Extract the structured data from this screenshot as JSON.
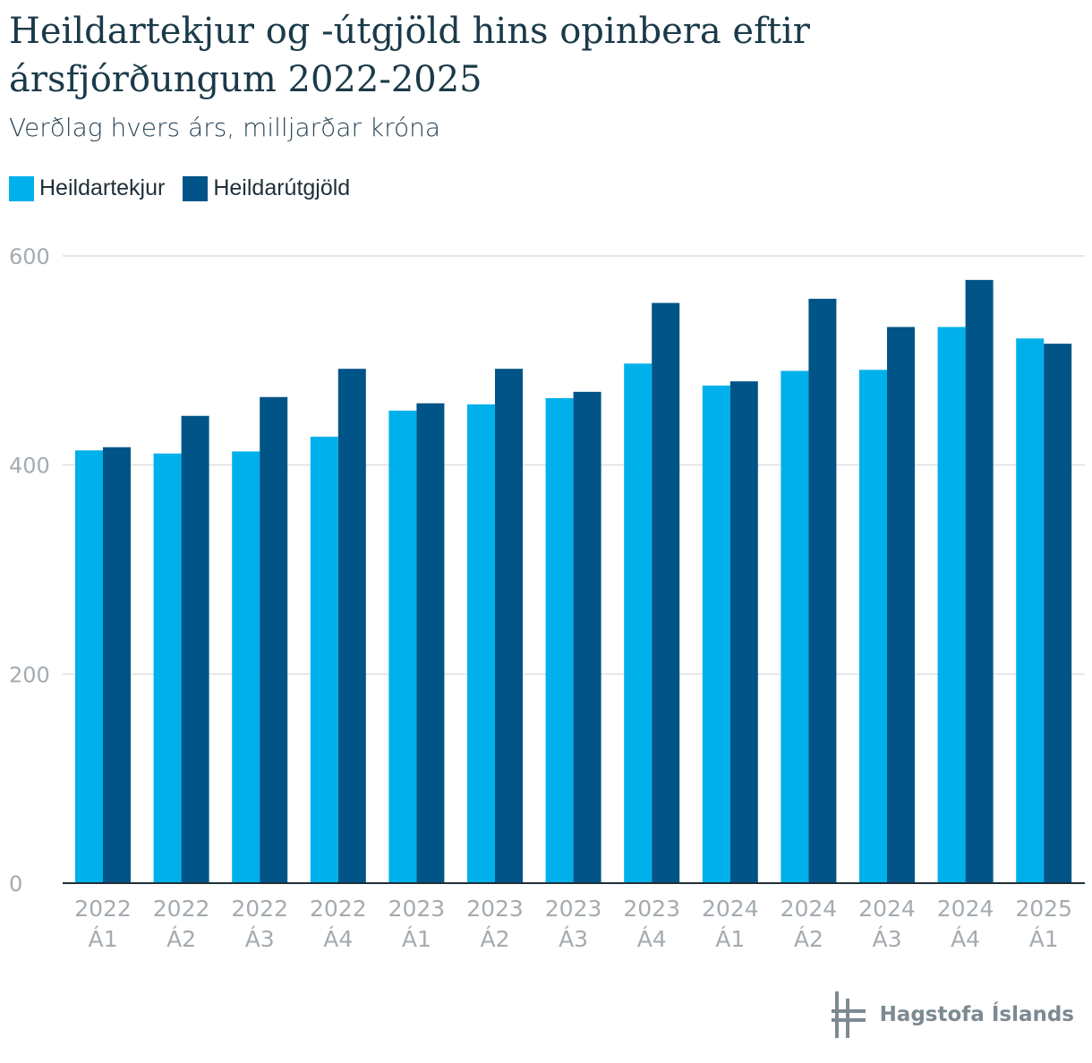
{
  "chart_data": {
    "type": "bar",
    "title": "Heildartekjur og -útgjöld hins opinbera eftir ársfjórðungum 2022-2025",
    "subtitle": "Verðlag hvers árs, milljarðar króna",
    "categories": [
      [
        "2022",
        "Á1"
      ],
      [
        "2022",
        "Á2"
      ],
      [
        "2022",
        "Á3"
      ],
      [
        "2022",
        "Á4"
      ],
      [
        "2023",
        "Á1"
      ],
      [
        "2023",
        "Á2"
      ],
      [
        "2023",
        "Á3"
      ],
      [
        "2023",
        "Á4"
      ],
      [
        "2024",
        "Á1"
      ],
      [
        "2024",
        "Á2"
      ],
      [
        "2024",
        "Á3"
      ],
      [
        "2024",
        "Á4"
      ],
      [
        "2025",
        "Á1"
      ]
    ],
    "series": [
      {
        "name": "Heildartekjur",
        "color": "#00b0ea",
        "values": [
          414,
          411,
          413,
          427,
          452,
          458,
          464,
          497,
          476,
          490,
          491,
          532,
          521
        ]
      },
      {
        "name": "Heildarútgjöld",
        "color": "#005487",
        "values": [
          417,
          447,
          465,
          492,
          459,
          492,
          470,
          555,
          480,
          559,
          532,
          577,
          516
        ]
      }
    ],
    "ylim": [
      0,
      600
    ],
    "yticks": [
      0,
      200,
      400,
      600
    ],
    "grid": true,
    "legend": "top-left",
    "xlabel": "",
    "ylabel": ""
  },
  "footer": {
    "logo_text": "Hagstofa Íslands"
  }
}
